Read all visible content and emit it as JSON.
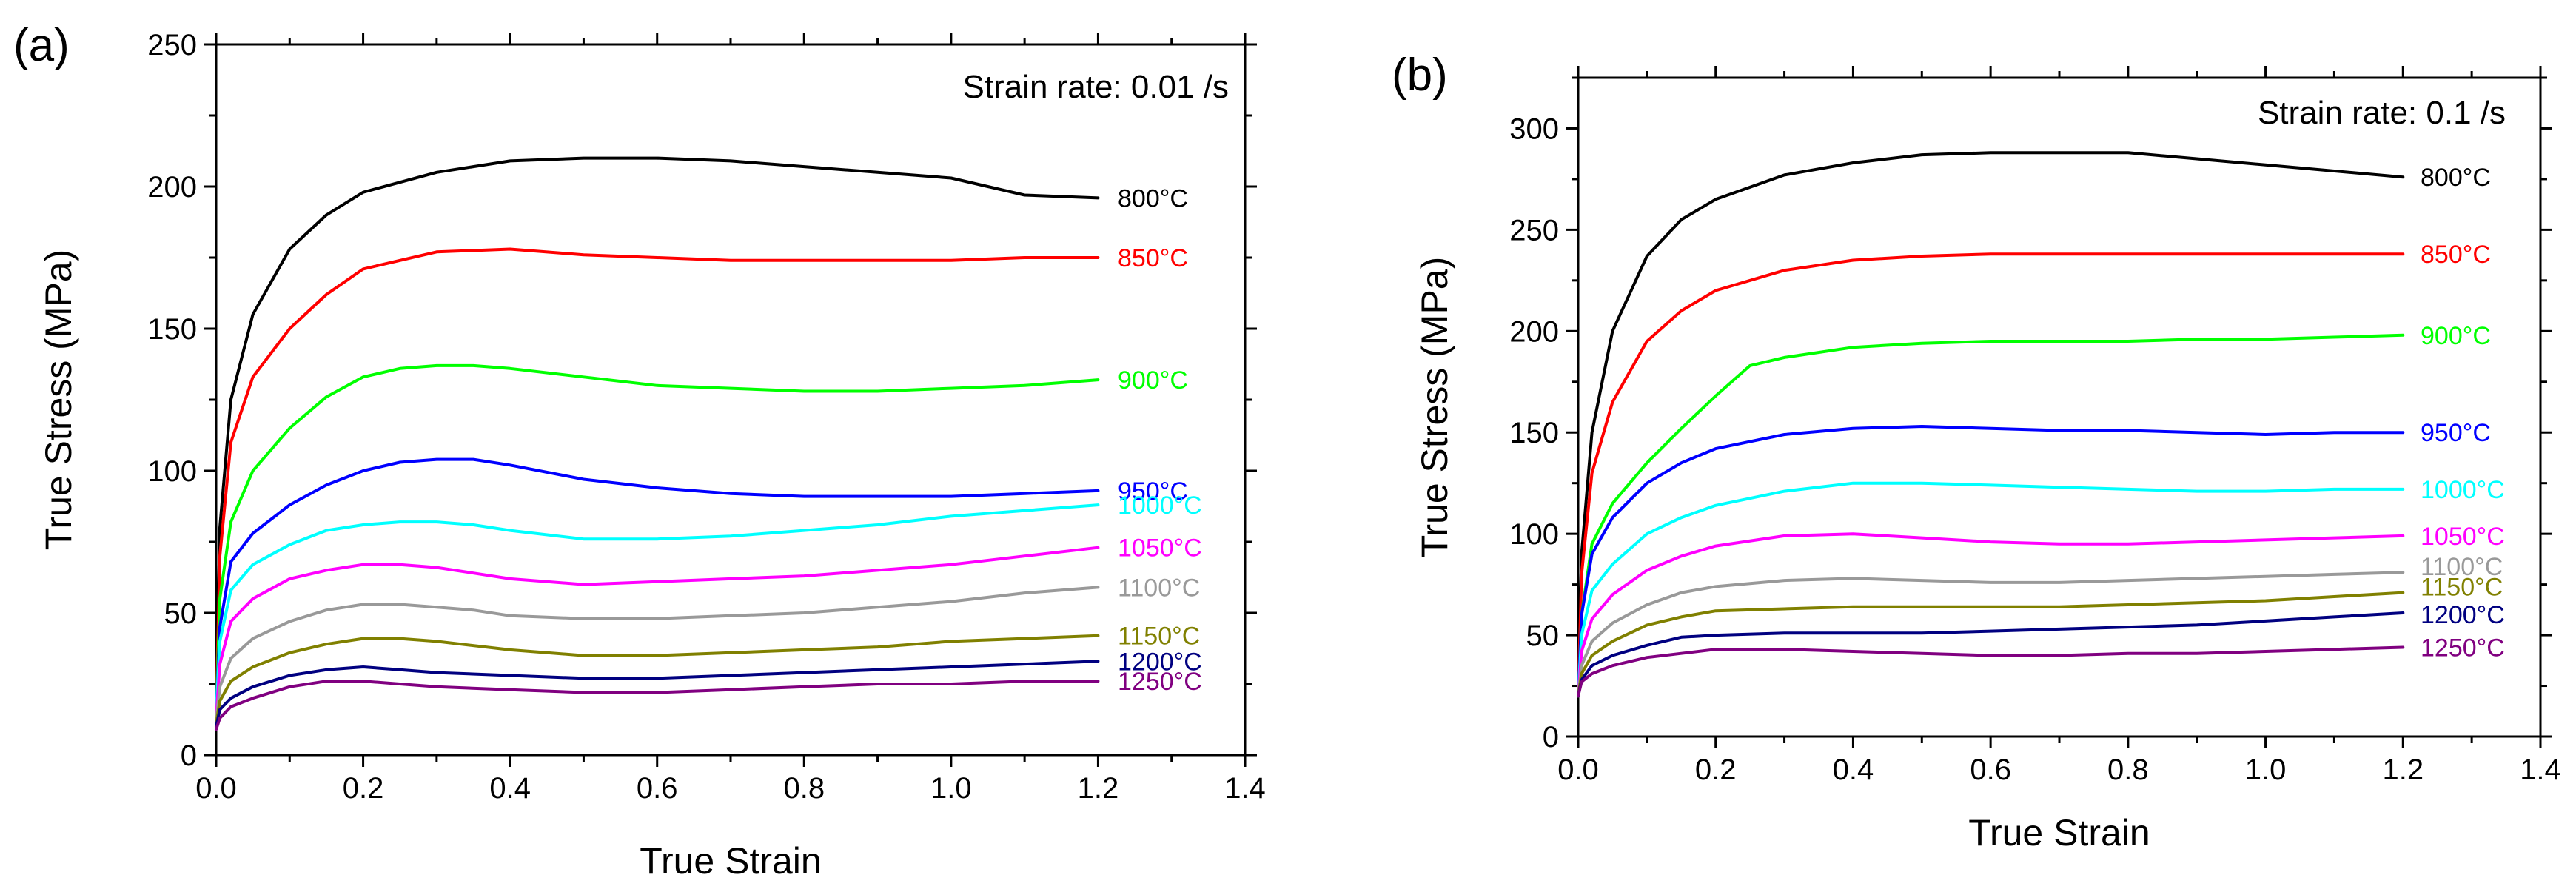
{
  "chart_data": [
    {
      "panel": "(a)",
      "type": "line",
      "annotation": "Strain rate: 0.01 /s",
      "xlabel": "True Strain",
      "ylabel": "True Stress (MPa)",
      "xlim": [
        0,
        1.4
      ],
      "ylim": [
        0,
        250
      ],
      "xticks": [
        0.0,
        0.2,
        0.4,
        0.6,
        0.8,
        1.0,
        1.2,
        1.4
      ],
      "xtick_labels": [
        "0.0",
        "0.2",
        "0.4",
        "0.6",
        "0.8",
        "1.0",
        "1.2",
        "1.4"
      ],
      "yticks": [
        0,
        50,
        100,
        150,
        200,
        250
      ],
      "ytick_labels": [
        "0",
        "50",
        "100",
        "150",
        "200",
        "250"
      ],
      "series": [
        {
          "name": "800°C",
          "color": "#000000",
          "x": [
            0,
            0.005,
            0.02,
            0.05,
            0.1,
            0.15,
            0.2,
            0.3,
            0.4,
            0.5,
            0.6,
            0.7,
            0.8,
            0.9,
            1.0,
            1.05,
            1.1,
            1.2
          ],
          "y": [
            15,
            80,
            125,
            155,
            178,
            190,
            198,
            205,
            209,
            210,
            210,
            209,
            207,
            205,
            203,
            200,
            197,
            196
          ]
        },
        {
          "name": "850°C",
          "color": "#ff0000",
          "x": [
            0,
            0.005,
            0.02,
            0.05,
            0.1,
            0.15,
            0.2,
            0.3,
            0.4,
            0.5,
            0.6,
            0.7,
            0.8,
            0.9,
            1.0,
            1.1,
            1.2
          ],
          "y": [
            15,
            70,
            110,
            133,
            150,
            162,
            171,
            177,
            178,
            176,
            175,
            174,
            174,
            174,
            174,
            175,
            175
          ]
        },
        {
          "name": "900°C",
          "color": "#00ff00",
          "x": [
            0,
            0.005,
            0.02,
            0.05,
            0.1,
            0.15,
            0.2,
            0.25,
            0.3,
            0.35,
            0.4,
            0.5,
            0.6,
            0.7,
            0.8,
            0.9,
            1.0,
            1.1,
            1.2
          ],
          "y": [
            15,
            55,
            82,
            100,
            115,
            126,
            133,
            136,
            137,
            137,
            136,
            133,
            130,
            129,
            128,
            128,
            129,
            130,
            132
          ]
        },
        {
          "name": "950°C",
          "color": "#0000ff",
          "x": [
            0,
            0.005,
            0.02,
            0.05,
            0.1,
            0.15,
            0.2,
            0.25,
            0.3,
            0.35,
            0.4,
            0.5,
            0.6,
            0.7,
            0.8,
            0.9,
            1.0,
            1.1,
            1.2
          ],
          "y": [
            15,
            45,
            68,
            78,
            88,
            95,
            100,
            103,
            104,
            104,
            102,
            97,
            94,
            92,
            91,
            91,
            91,
            92,
            93
          ]
        },
        {
          "name": "1000°C",
          "color": "#00ffff",
          "x": [
            0,
            0.005,
            0.02,
            0.05,
            0.1,
            0.15,
            0.2,
            0.25,
            0.3,
            0.35,
            0.4,
            0.5,
            0.6,
            0.7,
            0.8,
            0.9,
            1.0,
            1.1,
            1.2
          ],
          "y": [
            15,
            40,
            58,
            67,
            74,
            79,
            81,
            82,
            82,
            81,
            79,
            76,
            76,
            77,
            79,
            81,
            84,
            86,
            88
          ]
        },
        {
          "name": "1050°C",
          "color": "#ff00ff",
          "x": [
            0,
            0.005,
            0.02,
            0.05,
            0.1,
            0.15,
            0.2,
            0.25,
            0.3,
            0.35,
            0.4,
            0.5,
            0.6,
            0.7,
            0.8,
            0.9,
            1.0,
            1.1,
            1.2
          ],
          "y": [
            13,
            32,
            47,
            55,
            62,
            65,
            67,
            67,
            66,
            64,
            62,
            60,
            61,
            62,
            63,
            65,
            67,
            70,
            73
          ]
        },
        {
          "name": "1100°C",
          "color": "#999999",
          "x": [
            0,
            0.005,
            0.02,
            0.05,
            0.1,
            0.15,
            0.2,
            0.25,
            0.3,
            0.35,
            0.4,
            0.5,
            0.6,
            0.7,
            0.8,
            0.9,
            1.0,
            1.1,
            1.2
          ],
          "y": [
            12,
            24,
            34,
            41,
            47,
            51,
            53,
            53,
            52,
            51,
            49,
            48,
            48,
            49,
            50,
            52,
            54,
            57,
            59
          ]
        },
        {
          "name": "1150°C",
          "color": "#808000",
          "x": [
            0,
            0.005,
            0.02,
            0.05,
            0.1,
            0.15,
            0.2,
            0.25,
            0.3,
            0.4,
            0.5,
            0.6,
            0.7,
            0.8,
            0.9,
            1.0,
            1.1,
            1.2
          ],
          "y": [
            11,
            19,
            26,
            31,
            36,
            39,
            41,
            41,
            40,
            37,
            35,
            35,
            36,
            37,
            38,
            40,
            41,
            42
          ]
        },
        {
          "name": "1200°C",
          "color": "#000080",
          "x": [
            0,
            0.005,
            0.02,
            0.05,
            0.1,
            0.15,
            0.2,
            0.25,
            0.3,
            0.4,
            0.5,
            0.6,
            0.7,
            0.8,
            0.9,
            1.0,
            1.1,
            1.2
          ],
          "y": [
            10,
            16,
            20,
            24,
            28,
            30,
            31,
            30,
            29,
            28,
            27,
            27,
            28,
            29,
            30,
            31,
            32,
            33
          ]
        },
        {
          "name": "1250°C",
          "color": "#800080",
          "x": [
            0,
            0.005,
            0.02,
            0.05,
            0.1,
            0.15,
            0.2,
            0.25,
            0.3,
            0.4,
            0.5,
            0.6,
            0.7,
            0.8,
            0.9,
            1.0,
            1.1,
            1.2
          ],
          "y": [
            9,
            13,
            17,
            20,
            24,
            26,
            26,
            25,
            24,
            23,
            22,
            22,
            23,
            24,
            25,
            25,
            26,
            26
          ]
        }
      ]
    },
    {
      "panel": "(b)",
      "type": "line",
      "annotation": "Strain rate: 0.1 /s",
      "xlabel": "True Strain",
      "ylabel": "True Stress (MPa)",
      "xlim": [
        0,
        1.4
      ],
      "ylim": [
        0,
        325
      ],
      "xticks": [
        0.0,
        0.2,
        0.4,
        0.6,
        0.8,
        1.0,
        1.2,
        1.4
      ],
      "xtick_labels": [
        "0.0",
        "0.2",
        "0.4",
        "0.6",
        "0.8",
        "1.0",
        "1.2",
        "1.4"
      ],
      "yticks": [
        0,
        50,
        100,
        150,
        200,
        250,
        300
      ],
      "ytick_labels": [
        "0",
        "50",
        "100",
        "150",
        "200",
        "250",
        "300"
      ],
      "series": [
        {
          "name": "800°C",
          "color": "#000000",
          "x": [
            0,
            0.005,
            0.02,
            0.05,
            0.1,
            0.15,
            0.2,
            0.3,
            0.4,
            0.5,
            0.6,
            0.7,
            0.8,
            0.9,
            1.0,
            1.1,
            1.2
          ],
          "y": [
            20,
            90,
            150,
            200,
            237,
            255,
            265,
            277,
            283,
            287,
            288,
            288,
            288,
            285,
            282,
            279,
            276
          ]
        },
        {
          "name": "850°C",
          "color": "#ff0000",
          "x": [
            0,
            0.005,
            0.02,
            0.05,
            0.1,
            0.15,
            0.2,
            0.3,
            0.4,
            0.5,
            0.6,
            0.7,
            0.8,
            0.9,
            1.0,
            1.1,
            1.2
          ],
          "y": [
            20,
            80,
            130,
            165,
            195,
            210,
            220,
            230,
            235,
            237,
            238,
            238,
            238,
            238,
            238,
            238,
            238
          ]
        },
        {
          "name": "900°C",
          "color": "#00ff00",
          "x": [
            0,
            0.005,
            0.02,
            0.05,
            0.1,
            0.15,
            0.2,
            0.25,
            0.3,
            0.4,
            0.5,
            0.6,
            0.7,
            0.8,
            0.9,
            1.0,
            1.1,
            1.2
          ],
          "y": [
            20,
            60,
            95,
            115,
            135,
            152,
            168,
            183,
            187,
            192,
            194,
            195,
            195,
            195,
            196,
            196,
            197,
            198
          ]
        },
        {
          "name": "950°C",
          "color": "#0000ff",
          "x": [
            0,
            0.005,
            0.02,
            0.05,
            0.1,
            0.15,
            0.2,
            0.3,
            0.4,
            0.5,
            0.6,
            0.7,
            0.8,
            0.9,
            1.0,
            1.1,
            1.2
          ],
          "y": [
            20,
            60,
            90,
            108,
            125,
            135,
            142,
            149,
            152,
            153,
            152,
            151,
            151,
            150,
            149,
            150,
            150
          ]
        },
        {
          "name": "1000°C",
          "color": "#00ffff",
          "x": [
            0,
            0.005,
            0.02,
            0.05,
            0.1,
            0.15,
            0.2,
            0.3,
            0.4,
            0.5,
            0.6,
            0.7,
            0.8,
            0.9,
            1.0,
            1.1,
            1.2
          ],
          "y": [
            20,
            50,
            72,
            85,
            100,
            108,
            114,
            121,
            125,
            125,
            124,
            123,
            122,
            121,
            121,
            122,
            122
          ]
        },
        {
          "name": "1050°C",
          "color": "#ff00ff",
          "x": [
            0,
            0.005,
            0.02,
            0.05,
            0.1,
            0.15,
            0.2,
            0.3,
            0.4,
            0.5,
            0.6,
            0.7,
            0.8,
            0.9,
            1.0,
            1.1,
            1.2
          ],
          "y": [
            20,
            42,
            58,
            70,
            82,
            89,
            94,
            99,
            100,
            98,
            96,
            95,
            95,
            96,
            97,
            98,
            99
          ]
        },
        {
          "name": "1100°C",
          "color": "#999999",
          "x": [
            0,
            0.005,
            0.02,
            0.05,
            0.1,
            0.15,
            0.2,
            0.3,
            0.4,
            0.5,
            0.6,
            0.7,
            0.8,
            0.9,
            1.0,
            1.1,
            1.2
          ],
          "y": [
            20,
            35,
            47,
            56,
            65,
            71,
            74,
            77,
            78,
            77,
            76,
            76,
            77,
            78,
            79,
            80,
            81
          ]
        },
        {
          "name": "1150°C",
          "color": "#808000",
          "x": [
            0,
            0.005,
            0.02,
            0.05,
            0.1,
            0.15,
            0.2,
            0.3,
            0.4,
            0.5,
            0.6,
            0.7,
            0.8,
            0.9,
            1.0,
            1.1,
            1.2
          ],
          "y": [
            20,
            31,
            40,
            47,
            55,
            59,
            62,
            63,
            64,
            64,
            64,
            64,
            65,
            66,
            67,
            69,
            71
          ]
        },
        {
          "name": "1200°C",
          "color": "#000080",
          "x": [
            0,
            0.005,
            0.02,
            0.05,
            0.1,
            0.15,
            0.2,
            0.3,
            0.4,
            0.5,
            0.6,
            0.7,
            0.8,
            0.9,
            1.0,
            1.1,
            1.2
          ],
          "y": [
            20,
            28,
            35,
            40,
            45,
            49,
            50,
            51,
            51,
            51,
            52,
            53,
            54,
            55,
            57,
            59,
            61
          ]
        },
        {
          "name": "1250°C",
          "color": "#800080",
          "x": [
            0,
            0.005,
            0.02,
            0.05,
            0.1,
            0.15,
            0.2,
            0.3,
            0.4,
            0.5,
            0.6,
            0.7,
            0.8,
            0.9,
            1.0,
            1.1,
            1.2
          ],
          "y": [
            20,
            27,
            31,
            35,
            39,
            41,
            43,
            43,
            42,
            41,
            40,
            40,
            41,
            41,
            42,
            43,
            44
          ]
        }
      ]
    }
  ]
}
